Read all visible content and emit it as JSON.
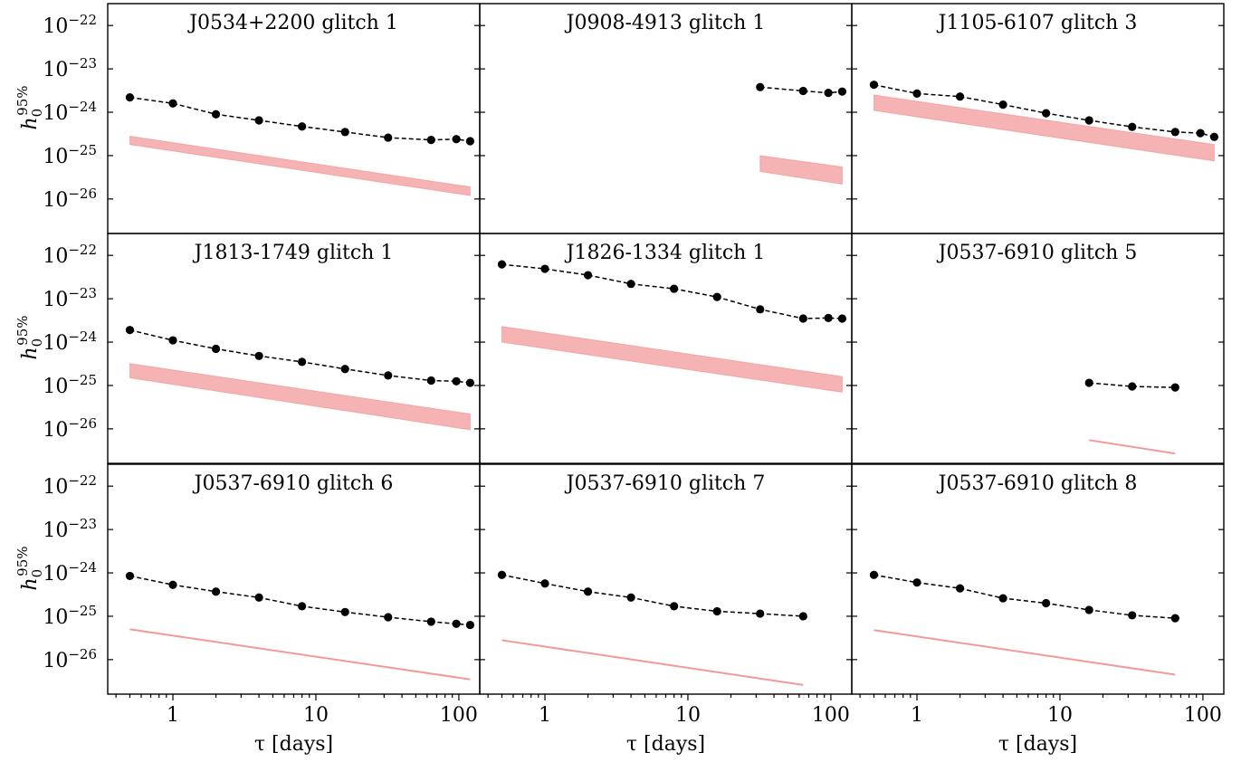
{
  "figure": {
    "y_axis_label": "h_0^{95%}",
    "x_axis_label": "τ [days]",
    "x_tick_labels": [
      "1",
      "10",
      "100"
    ],
    "y_tick_exponents": [
      "-22",
      "-23",
      "-24",
      "-25",
      "-26"
    ]
  },
  "colors": {
    "points": "#000000",
    "band": "#f08080",
    "band_alpha": 0.6
  },
  "chart_data": [
    {
      "type": "line",
      "title": "J0534+2200 glitch 1",
      "xscale": "log",
      "yscale": "log",
      "xlim": [
        0.35,
        140
      ],
      "ylim": [
        1.6e-27,
        3.2e-22
      ],
      "xticks": [
        1,
        10,
        100
      ],
      "yticks": [
        1e-22,
        1e-23,
        1e-24,
        1e-25,
        1e-26
      ],
      "grid": false,
      "series": [
        {
          "style": "points-dashed",
          "x": [
            0.5,
            1,
            2,
            4,
            8,
            16,
            32,
            64,
            96,
            120
          ],
          "y": [
            2.2e-24,
            1.6e-24,
            9e-25,
            6.5e-25,
            4.7e-25,
            3.5e-25,
            2.6e-25,
            2.3e-25,
            2.4e-25,
            2.15e-25
          ]
        },
        {
          "style": "band",
          "x": [
            0.5,
            120
          ],
          "y_upper": [
            2.8e-25,
            1.9e-26
          ],
          "y_lower": [
            1.8e-25,
            1.2e-26
          ]
        }
      ]
    },
    {
      "type": "line",
      "title": "J0908-4913 glitch 1",
      "xscale": "log",
      "yscale": "log",
      "xlim": [
        0.35,
        140
      ],
      "ylim": [
        1.6e-27,
        3.2e-22
      ],
      "xticks": [
        1,
        10,
        100
      ],
      "yticks": [
        1e-22,
        1e-23,
        1e-24,
        1e-25,
        1e-26
      ],
      "grid": false,
      "series": [
        {
          "style": "points-dashed",
          "x": [
            32,
            64,
            96,
            120
          ],
          "y": [
            3.8e-24,
            3.1e-24,
            2.8e-24,
            3e-24
          ]
        },
        {
          "style": "band",
          "x": [
            32,
            120
          ],
          "y_upper": [
            1e-25,
            5.5e-26
          ],
          "y_lower": [
            4.3e-26,
            2.2e-26
          ]
        }
      ]
    },
    {
      "type": "line",
      "title": "J1105-6107 glitch 3",
      "xscale": "log",
      "yscale": "log",
      "xlim": [
        0.35,
        140
      ],
      "ylim": [
        1.6e-27,
        3.2e-22
      ],
      "xticks": [
        1,
        10,
        100
      ],
      "yticks": [
        1e-22,
        1e-23,
        1e-24,
        1e-25,
        1e-26
      ],
      "grid": false,
      "series": [
        {
          "style": "points-dashed",
          "x": [
            0.5,
            1,
            2,
            4,
            8,
            16,
            32,
            64,
            96,
            120
          ],
          "y": [
            4.3e-24,
            2.7e-24,
            2.3e-24,
            1.5e-24,
            9.5e-25,
            6.5e-25,
            4.6e-25,
            3.5e-25,
            3.3e-25,
            2.7e-25
          ]
        },
        {
          "style": "band",
          "x": [
            0.5,
            120
          ],
          "y_upper": [
            2.5e-24,
            1.8e-25
          ],
          "y_lower": [
            1.1e-24,
            7.5e-26
          ]
        }
      ]
    },
    {
      "type": "line",
      "title": "J1813-1749 glitch 1",
      "xscale": "log",
      "yscale": "log",
      "xlim": [
        0.35,
        140
      ],
      "ylim": [
        1.6e-27,
        3.2e-22
      ],
      "xticks": [
        1,
        10,
        100
      ],
      "yticks": [
        1e-22,
        1e-23,
        1e-24,
        1e-25,
        1e-26
      ],
      "grid": false,
      "series": [
        {
          "style": "points-dashed",
          "x": [
            0.5,
            1,
            2,
            4,
            8,
            16,
            32,
            64,
            96,
            120
          ],
          "y": [
            1.9e-24,
            1.1e-24,
            7e-25,
            4.8e-25,
            3.5e-25,
            2.4e-25,
            1.7e-25,
            1.3e-25,
            1.25e-25,
            1.15e-25
          ]
        },
        {
          "style": "band",
          "x": [
            0.5,
            120
          ],
          "y_upper": [
            3.2e-25,
            2.2e-26
          ],
          "y_lower": [
            1.5e-25,
            9.5e-27
          ]
        }
      ]
    },
    {
      "type": "line",
      "title": "J1826-1334 glitch 1",
      "xscale": "log",
      "yscale": "log",
      "xlim": [
        0.35,
        140
      ],
      "ylim": [
        1.6e-27,
        3.2e-22
      ],
      "xticks": [
        1,
        10,
        100
      ],
      "yticks": [
        1e-22,
        1e-23,
        1e-24,
        1e-25,
        1e-26
      ],
      "grid": false,
      "series": [
        {
          "style": "points-dashed",
          "x": [
            0.5,
            1,
            2,
            4,
            8,
            16,
            32,
            64,
            96,
            120
          ],
          "y": [
            6.2e-23,
            4.9e-23,
            3.5e-23,
            2.2e-23,
            1.7e-23,
            1.1e-23,
            5.7e-24,
            3.5e-24,
            3.6e-24,
            3.5e-24
          ]
        },
        {
          "style": "band",
          "x": [
            0.5,
            120
          ],
          "y_upper": [
            2.3e-24,
            1.6e-25
          ],
          "y_lower": [
            1e-24,
            7e-26
          ]
        }
      ]
    },
    {
      "type": "line",
      "title": "J0537-6910 glitch 5",
      "xscale": "log",
      "yscale": "log",
      "xlim": [
        0.35,
        140
      ],
      "ylim": [
        1.6e-27,
        3.2e-22
      ],
      "xticks": [
        1,
        10,
        100
      ],
      "yticks": [
        1e-22,
        1e-23,
        1e-24,
        1e-25,
        1e-26
      ],
      "grid": false,
      "series": [
        {
          "style": "points-dashed",
          "x": [
            16,
            32,
            64
          ],
          "y": [
            1.15e-25,
            9.5e-26,
            9e-26
          ]
        },
        {
          "style": "line",
          "x": [
            16,
            64
          ],
          "y": [
            5.5e-27,
            2.7e-27
          ]
        }
      ]
    },
    {
      "type": "line",
      "title": "J0537-6910 glitch 6",
      "xscale": "log",
      "yscale": "log",
      "xlim": [
        0.35,
        140
      ],
      "ylim": [
        1.6e-27,
        3.2e-22
      ],
      "xticks": [
        1,
        10,
        100
      ],
      "yticks": [
        1e-22,
        1e-23,
        1e-24,
        1e-25,
        1e-26
      ],
      "grid": false,
      "series": [
        {
          "style": "points-dashed",
          "x": [
            0.5,
            1,
            2,
            4,
            8,
            16,
            32,
            64,
            96,
            120
          ],
          "y": [
            8.5e-25,
            5.3e-25,
            3.7e-25,
            2.7e-25,
            1.7e-25,
            1.25e-25,
            9.5e-26,
            7.5e-26,
            6.7e-26,
            6.3e-26
          ]
        },
        {
          "style": "line",
          "x": [
            0.5,
            120
          ],
          "y": [
            5e-26,
            3.5e-27
          ]
        }
      ]
    },
    {
      "type": "line",
      "title": "J0537-6910 glitch 7",
      "xscale": "log",
      "yscale": "log",
      "xlim": [
        0.35,
        140
      ],
      "ylim": [
        1.6e-27,
        3.2e-22
      ],
      "xticks": [
        1,
        10,
        100
      ],
      "yticks": [
        1e-22,
        1e-23,
        1e-24,
        1e-25,
        1e-26
      ],
      "grid": false,
      "series": [
        {
          "style": "points-dashed",
          "x": [
            0.5,
            1,
            2,
            4,
            8,
            16,
            32,
            64
          ],
          "y": [
            9e-25,
            5.7e-25,
            3.7e-25,
            2.7e-25,
            1.7e-25,
            1.3e-25,
            1.15e-25,
            1e-25
          ]
        },
        {
          "style": "line",
          "x": [
            0.5,
            64
          ],
          "y": [
            2.8e-26,
            2.6e-27
          ]
        }
      ]
    },
    {
      "type": "line",
      "title": "J0537-6910 glitch 8",
      "xscale": "log",
      "yscale": "log",
      "xlim": [
        0.35,
        140
      ],
      "ylim": [
        1.6e-27,
        3.2e-22
      ],
      "xticks": [
        1,
        10,
        100
      ],
      "yticks": [
        1e-22,
        1e-23,
        1e-24,
        1e-25,
        1e-26
      ],
      "grid": false,
      "series": [
        {
          "style": "points-dashed",
          "x": [
            0.5,
            1,
            2,
            4,
            8,
            16,
            32,
            64
          ],
          "y": [
            9e-25,
            6e-25,
            4.4e-25,
            2.6e-25,
            2e-25,
            1.4e-25,
            1.05e-25,
            9e-26
          ]
        },
        {
          "style": "line",
          "x": [
            0.5,
            64
          ],
          "y": [
            4.8e-26,
            4.5e-27
          ]
        }
      ]
    }
  ]
}
